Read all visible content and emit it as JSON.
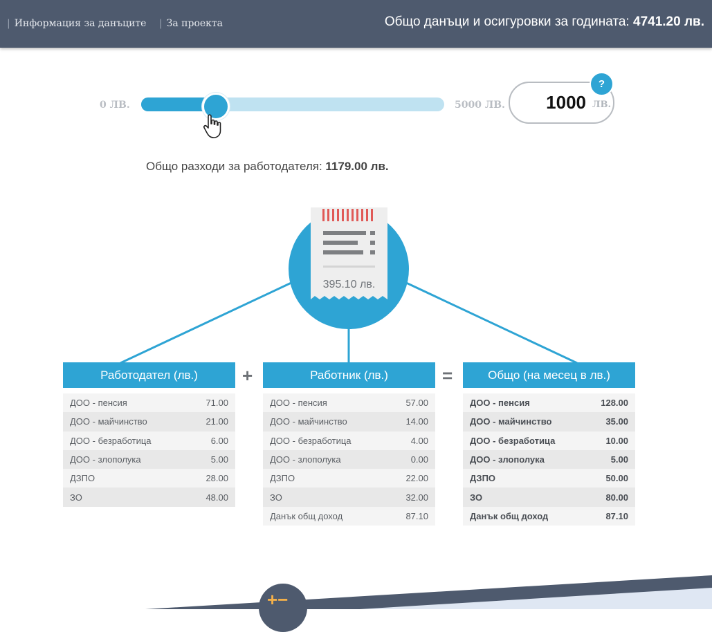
{
  "header": {
    "nav": [
      {
        "label": "Информация за данъците"
      },
      {
        "label": "За проекта"
      }
    ],
    "annual_total_label": "Общо данъци и осигуровки за годината:",
    "annual_total_value": "4741.20 лв."
  },
  "slider": {
    "min_label": "0 ЛВ.",
    "max_label": "5000 ЛВ.",
    "min": 0,
    "max": 5000,
    "value": 1000,
    "amount": "1000",
    "unit": "ЛВ.",
    "help": "?"
  },
  "employer_total": {
    "label": "Общо разходи за работодателя:",
    "value": "1179.00 лв."
  },
  "receipt": {
    "amount": "395.10 лв."
  },
  "tables": {
    "employer": {
      "title": "Работодател (лв.)",
      "rows": [
        {
          "label": "ДОО - пенсия",
          "value": "71.00"
        },
        {
          "label": "ДОО - майчинство",
          "value": "21.00"
        },
        {
          "label": "ДОО - безработица",
          "value": "6.00"
        },
        {
          "label": "ДОО - злополука",
          "value": "5.00"
        },
        {
          "label": "ДЗПО",
          "value": "28.00"
        },
        {
          "label": "ЗО",
          "value": "48.00"
        }
      ]
    },
    "employee": {
      "title": "Работник (лв.)",
      "rows": [
        {
          "label": "ДОО - пенсия",
          "value": "57.00"
        },
        {
          "label": "ДОО - майчинство",
          "value": "14.00"
        },
        {
          "label": "ДОО - безработица",
          "value": "4.00"
        },
        {
          "label": "ДОО - злополука",
          "value": "0.00"
        },
        {
          "label": "ДЗПО",
          "value": "22.00"
        },
        {
          "label": "ЗО",
          "value": "32.00"
        },
        {
          "label": "Данък общ доход",
          "value": "87.10"
        }
      ]
    },
    "total": {
      "title": "Общо (на месец в лв.)",
      "rows": [
        {
          "label": "ДОО - пенсия",
          "value": "128.00"
        },
        {
          "label": "ДОО - майчинство",
          "value": "35.00"
        },
        {
          "label": "ДОО - безработица",
          "value": "10.00"
        },
        {
          "label": "ДОО - злополука",
          "value": "5.00"
        },
        {
          "label": "ДЗПО",
          "value": "50.00"
        },
        {
          "label": "ЗО",
          "value": "80.00"
        },
        {
          "label": "Данък общ доход",
          "value": "87.10"
        }
      ]
    },
    "plus_sign": "+",
    "equals_sign": "="
  },
  "footer": {
    "plus_minus": "+−"
  },
  "colors": {
    "header_bg": "#4e5a6e",
    "accent": "#2ea4d4",
    "track_bg": "#bfe2f1",
    "receipt_stripe": "#e05a57"
  }
}
